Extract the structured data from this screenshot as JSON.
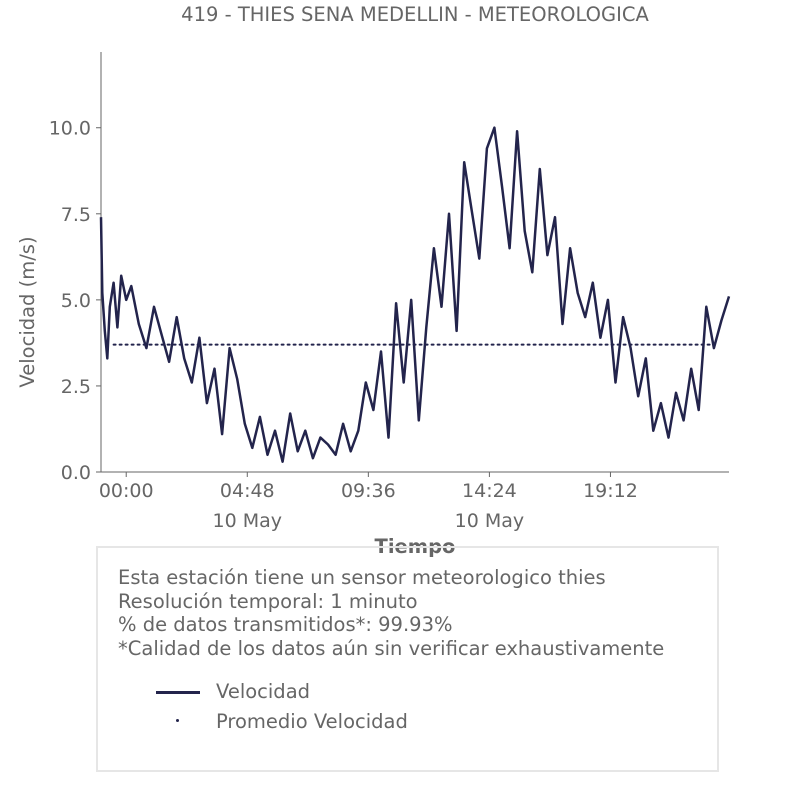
{
  "chart_data": {
    "type": "line",
    "title": "419 - THIES SENA MEDELLIN - METEOROLOGICA",
    "xlabel": "Tiempo",
    "ylabel": "Velocidad (m/s)",
    "xlim_hours": [
      -1.0,
      23.9
    ],
    "ylim": [
      0,
      12.2
    ],
    "y_ticks": [
      {
        "value": 0.0,
        "label": "0.0"
      },
      {
        "value": 2.5,
        "label": "2.5"
      },
      {
        "value": 5.0,
        "label": "5.0"
      },
      {
        "value": 7.5,
        "label": "7.5"
      },
      {
        "value": 10.0,
        "label": "10.0"
      }
    ],
    "x_ticks": [
      {
        "value": 0.0,
        "label": "00:00",
        "sublabel": ""
      },
      {
        "value": 4.8,
        "label": "04:48",
        "sublabel": "10 May"
      },
      {
        "value": 9.6,
        "label": "09:36",
        "sublabel": ""
      },
      {
        "value": 14.4,
        "label": "14:24",
        "sublabel": "10 May"
      },
      {
        "value": 19.2,
        "label": "19:12",
        "sublabel": ""
      }
    ],
    "grid": false,
    "series": [
      {
        "name": "Velocidad",
        "style": "solid",
        "color": "#23244c",
        "x": [
          -1.0,
          -0.95,
          -0.85,
          -0.75,
          -0.65,
          -0.5,
          -0.35,
          -0.2,
          0.0,
          0.2,
          0.5,
          0.8,
          1.1,
          1.4,
          1.7,
          2.0,
          2.3,
          2.6,
          2.9,
          3.2,
          3.5,
          3.8,
          4.1,
          4.4,
          4.7,
          5.0,
          5.3,
          5.6,
          5.9,
          6.2,
          6.5,
          6.8,
          7.1,
          7.4,
          7.7,
          8.0,
          8.3,
          8.6,
          8.9,
          9.2,
          9.5,
          9.8,
          10.1,
          10.4,
          10.7,
          11.0,
          11.3,
          11.6,
          11.9,
          12.2,
          12.5,
          12.8,
          13.1,
          13.4,
          13.7,
          14.0,
          14.3,
          14.6,
          14.9,
          15.2,
          15.5,
          15.8,
          16.1,
          16.4,
          16.7,
          17.0,
          17.3,
          17.6,
          17.9,
          18.2,
          18.5,
          18.8,
          19.1,
          19.4,
          19.7,
          20.0,
          20.3,
          20.6,
          20.9,
          21.2,
          21.5,
          21.8,
          22.1,
          22.4,
          22.7,
          23.0,
          23.3,
          23.6,
          23.9
        ],
        "values": [
          7.4,
          5.2,
          4.1,
          3.3,
          4.8,
          5.5,
          4.2,
          5.7,
          5.0,
          5.4,
          4.3,
          3.6,
          4.8,
          4.0,
          3.2,
          4.5,
          3.3,
          2.6,
          3.9,
          2.0,
          3.0,
          1.1,
          3.6,
          2.7,
          1.4,
          0.7,
          1.6,
          0.5,
          1.2,
          0.3,
          1.7,
          0.6,
          1.2,
          0.4,
          1.0,
          0.8,
          0.5,
          1.4,
          0.6,
          1.2,
          2.6,
          1.8,
          3.5,
          1.0,
          4.9,
          2.6,
          5.0,
          1.5,
          4.2,
          6.5,
          4.8,
          7.5,
          4.1,
          9.0,
          7.6,
          6.2,
          9.4,
          10.0,
          8.3,
          6.5,
          9.9,
          7.0,
          5.8,
          8.8,
          6.3,
          7.4,
          4.3,
          6.5,
          5.2,
          4.5,
          5.5,
          3.9,
          5.0,
          2.6,
          4.5,
          3.6,
          2.2,
          3.3,
          1.2,
          2.0,
          1.0,
          2.3,
          1.5,
          3.0,
          1.8,
          4.8,
          3.6,
          4.4,
          5.1
        ]
      },
      {
        "name": "Promedio Velocidad",
        "style": "dotted",
        "color": "#23244c",
        "x": [
          -0.5,
          23.3
        ],
        "values": [
          3.7,
          3.7
        ]
      }
    ],
    "legend": {
      "placement": "bottom-left, inside info box"
    }
  },
  "info": {
    "lines": [
      "Esta estación tiene un sensor meteorologico thies",
      "Resolución temporal: 1 minuto",
      "% de datos transmitidos*: 99.93%",
      "*Calidad de los datos aún sin verificar exhaustivamente"
    ]
  },
  "colors": {
    "series": "#23244c",
    "text": "#666666",
    "axis": "#666666",
    "box_border": "#e6e6e6"
  }
}
